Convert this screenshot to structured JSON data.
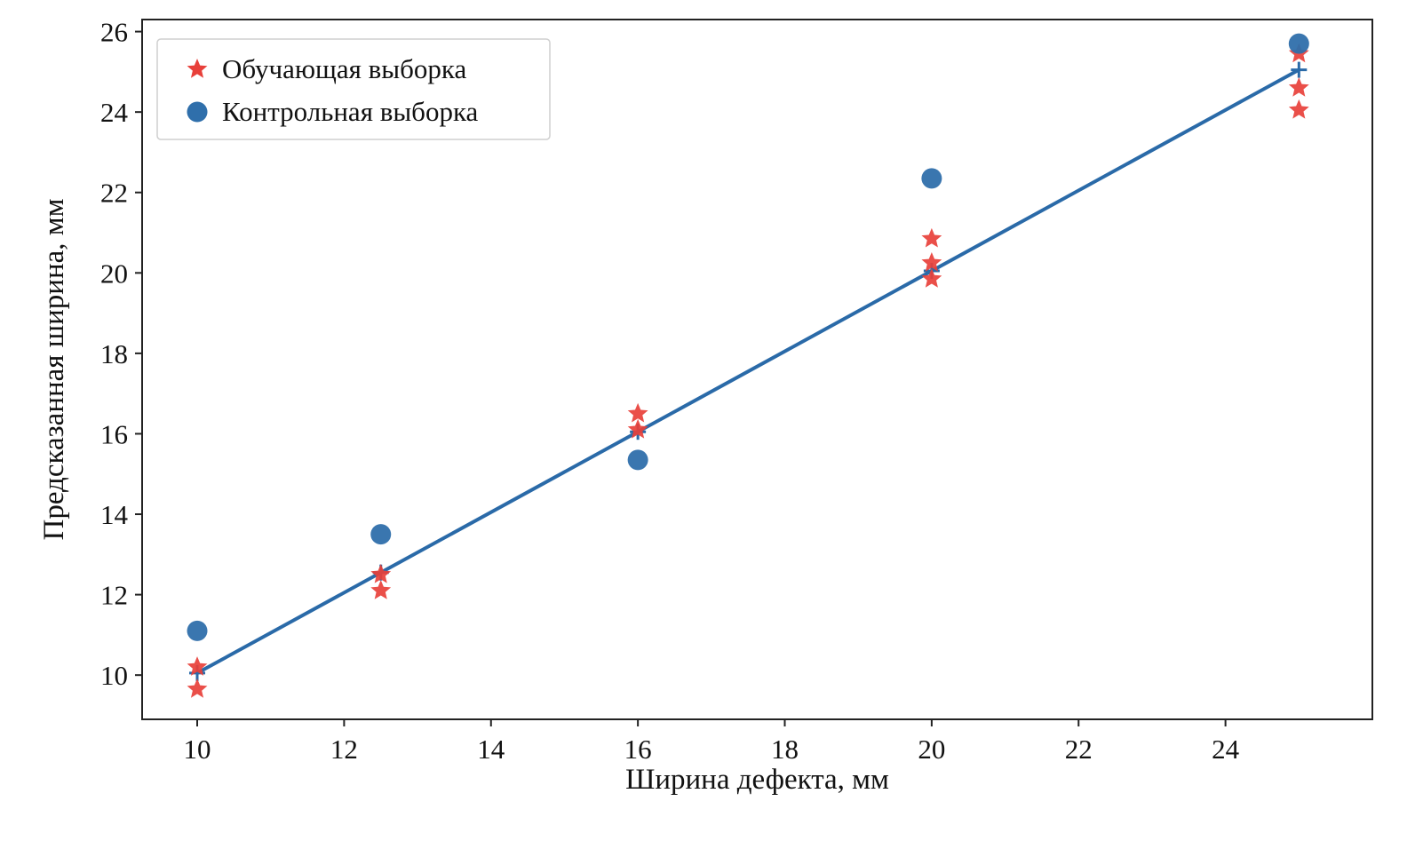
{
  "chart_data": {
    "type": "scatter",
    "xlabel": "Ширина дефекта, мм",
    "ylabel": "Предсказанная ширина, мм",
    "xlim": [
      9.25,
      26.0
    ],
    "ylim": [
      8.9,
      26.3
    ],
    "xticks": [
      "10",
      "12",
      "14",
      "16",
      "18",
      "20",
      "22",
      "24"
    ],
    "yticks": [
      "10",
      "12",
      "14",
      "16",
      "18",
      "20",
      "22",
      "24",
      "26"
    ],
    "grid": false,
    "legend_position": "top-left",
    "series": [
      {
        "name": "Обучающая выборка",
        "marker": "star",
        "color": "#e8403a",
        "points": [
          [
            10,
            10.2
          ],
          [
            10,
            9.65
          ],
          [
            12.5,
            12.5
          ],
          [
            12.5,
            12.1
          ],
          [
            16,
            16.5
          ],
          [
            16,
            16.1
          ],
          [
            20,
            20.85
          ],
          [
            20,
            20.25
          ],
          [
            20,
            19.85
          ],
          [
            25,
            25.45
          ],
          [
            25,
            24.6
          ],
          [
            25,
            24.05
          ]
        ]
      },
      {
        "name": "Контрольная выборка",
        "marker": "circle",
        "color": "#2f6fab",
        "points": [
          [
            10,
            11.1
          ],
          [
            12.5,
            13.5
          ],
          [
            16,
            15.35
          ],
          [
            20,
            22.35
          ],
          [
            25,
            25.7
          ]
        ]
      }
    ],
    "fit_line": {
      "color": "#2a6aa8",
      "points": [
        [
          10,
          10.05
        ],
        [
          25,
          25.05
        ]
      ]
    }
  }
}
